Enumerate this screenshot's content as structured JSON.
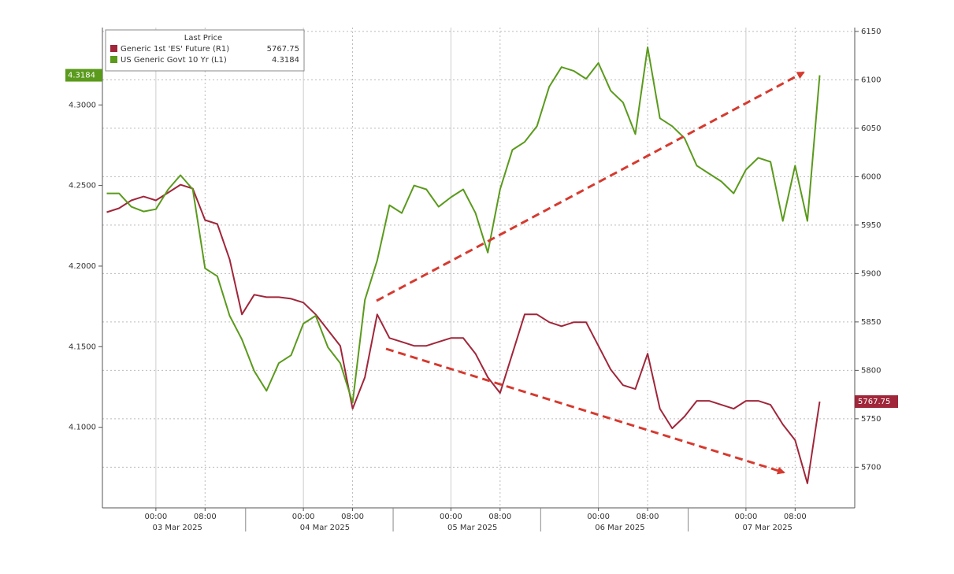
{
  "chart_data": {
    "type": "line",
    "legend_title": "Last Price",
    "x": [
      -8,
      -6,
      -4,
      -2,
      0,
      2,
      4,
      6,
      8,
      10,
      12,
      14,
      16,
      18,
      20,
      22,
      24,
      26,
      28,
      30,
      32,
      34,
      36,
      38,
      40,
      42,
      44,
      46,
      48,
      50,
      52,
      54,
      56,
      58,
      60,
      62,
      64,
      66,
      68,
      70,
      72,
      74,
      76,
      78,
      80,
      82,
      84,
      86,
      88,
      90,
      92,
      94,
      96,
      98,
      100,
      102,
      104,
      106,
      108
    ],
    "xlim": [
      -8.7,
      113.7
    ],
    "xticks": [
      {
        "value": 0,
        "label": "00:00"
      },
      {
        "value": 8,
        "label": "08:00"
      },
      {
        "value": 24,
        "label": "00:00"
      },
      {
        "value": 32,
        "label": "08:00"
      },
      {
        "value": 48,
        "label": "00:00"
      },
      {
        "value": 56,
        "label": "08:00"
      },
      {
        "value": 72,
        "label": "00:00"
      },
      {
        "value": 80,
        "label": "08:00"
      },
      {
        "value": 96,
        "label": "00:00"
      },
      {
        "value": 104,
        "label": "08:00"
      }
    ],
    "x_date_labels": [
      {
        "value": 3.5,
        "label": "03 Mar 2025"
      },
      {
        "value": 27.5,
        "label": "04 Mar 2025"
      },
      {
        "value": 51.5,
        "label": "05 Mar 2025"
      },
      {
        "value": 75.5,
        "label": "06 Mar 2025"
      },
      {
        "value": 99.5,
        "label": "07 Mar 2025"
      }
    ],
    "day_separators": [
      14.6,
      38.6,
      62.6,
      86.6
    ],
    "ylim": [
      4.05,
      4.348
    ],
    "yticks": [
      {
        "value": 4.1,
        "label": "4.1000"
      },
      {
        "value": 4.15,
        "label": "4.1500"
      },
      {
        "value": 4.2,
        "label": "4.2000"
      },
      {
        "value": 4.25,
        "label": "4.2500"
      },
      {
        "value": 4.3,
        "label": "4.3000"
      }
    ],
    "y2lim": [
      5658,
      6154
    ],
    "y2ticks": [
      5700,
      5750,
      5800,
      5850,
      5900,
      5950,
      6000,
      6050,
      6100,
      6150
    ],
    "grid": true,
    "series": [
      {
        "name": "Generic 1st 'ES' Future (R1)",
        "color": "#a0263a",
        "axis": "y2",
        "values": [
          5963.3,
          5967.4,
          5975.5,
          5979.5,
          5975.5,
          5983.6,
          5991.7,
          5987.7,
          5955.2,
          5951.1,
          5914.6,
          5857.8,
          5878.1,
          5875.6,
          5875.6,
          5874.0,
          5870.0,
          5857.8,
          5841.6,
          5825.3,
          5760.4,
          5792.9,
          5857.8,
          5833.4,
          5829.4,
          5825.3,
          5825.3,
          5829.4,
          5833.4,
          5833.4,
          5817.2,
          5792.9,
          5776.6,
          5817.2,
          5857.8,
          5857.8,
          5849.7,
          5845.6,
          5849.7,
          5849.7,
          5825.3,
          5800.9,
          5784.7,
          5780.7,
          5817.2,
          5760.4,
          5740.1,
          5752.3,
          5768.5,
          5768.5,
          5764.4,
          5760.4,
          5768.5,
          5768.5,
          5764.4,
          5744.2,
          5727.9,
          5683.3,
          5767.75
        ]
      },
      {
        "name": "US Generic Govt 10 Yr (L1)",
        "color": "#5a9a1c",
        "axis": "y",
        "values": [
          4.2451,
          4.2451,
          4.2368,
          4.2339,
          4.2353,
          4.2476,
          4.2564,
          4.2476,
          4.1986,
          4.1937,
          4.1692,
          4.1545,
          4.1349,
          4.1226,
          4.1398,
          4.1447,
          4.1643,
          4.1692,
          4.1496,
          4.1398,
          4.1153,
          4.179,
          4.2035,
          4.2378,
          4.2329,
          4.25,
          4.2476,
          4.2368,
          4.2427,
          4.2476,
          4.2329,
          4.2084,
          4.2476,
          4.2721,
          4.277,
          4.2868,
          4.3113,
          4.3235,
          4.3211,
          4.3162,
          4.326,
          4.3088,
          4.3015,
          4.2819,
          4.3358,
          4.2917,
          4.2868,
          4.2794,
          4.2623,
          4.2574,
          4.2525,
          4.2451,
          4.2598,
          4.2672,
          4.2647,
          4.228,
          4.2623,
          4.228,
          4.3184
        ]
      }
    ]
  }
}
